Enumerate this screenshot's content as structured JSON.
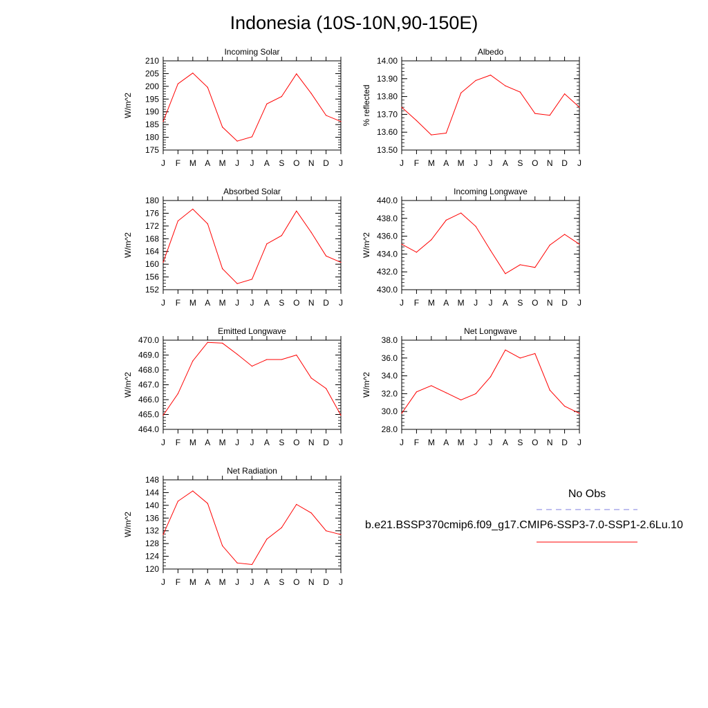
{
  "title": "Indonesia (10S-10N,90-150E)",
  "legend": {
    "title": "No Obs",
    "label": "b.e21.BSSP370cmip6.f09_g17.CMIP6-SSP3-7.0-SSP1-2.6Lu.10",
    "obs_color": "#7f7fe0",
    "model_color": "#ff0000"
  },
  "chart_data": [
    {
      "type": "line",
      "title": "Incoming Solar",
      "ylabel": "W/m^2",
      "categories": [
        "J",
        "F",
        "M",
        "A",
        "M",
        "J",
        "J",
        "A",
        "S",
        "O",
        "N",
        "D",
        "J"
      ],
      "ylim": [
        175,
        210
      ],
      "yticks": [
        "175",
        "180",
        "185",
        "190",
        "195",
        "200",
        "205",
        "210"
      ],
      "yminor": 1,
      "series": [
        {
          "color": "#ff0000",
          "values": [
            186.2,
            201.0,
            205.2,
            199.6,
            184.0,
            178.5,
            180.2,
            193.1,
            196.0,
            204.9,
            197.2,
            188.6,
            186.2
          ]
        }
      ]
    },
    {
      "type": "line",
      "title": "Albedo",
      "ylabel": "% reflected",
      "categories": [
        "J",
        "F",
        "M",
        "A",
        "M",
        "J",
        "J",
        "A",
        "S",
        "O",
        "N",
        "D",
        "J"
      ],
      "ylim": [
        13.5,
        14.0
      ],
      "yticks": [
        "13.50",
        "13.60",
        "13.70",
        "13.80",
        "13.90",
        "14.00"
      ],
      "yminor": 0.02,
      "series": [
        {
          "color": "#ff0000",
          "values": [
            13.74,
            13.665,
            13.585,
            13.595,
            13.82,
            13.89,
            13.92,
            13.86,
            13.825,
            13.705,
            13.695,
            13.815,
            13.74
          ]
        }
      ]
    },
    {
      "type": "line",
      "title": "Absorbed Solar",
      "ylabel": "W/m^2",
      "categories": [
        "J",
        "F",
        "M",
        "A",
        "M",
        "J",
        "J",
        "A",
        "S",
        "O",
        "N",
        "D",
        "J"
      ],
      "ylim": [
        152,
        180
      ],
      "yticks": [
        "152",
        "156",
        "160",
        "164",
        "168",
        "172",
        "176",
        "180"
      ],
      "yminor": 1,
      "series": [
        {
          "color": "#ff0000",
          "values": [
            160.6,
            173.6,
            177.3,
            172.7,
            158.6,
            153.9,
            155.3,
            166.4,
            169.0,
            176.7,
            170.0,
            162.6,
            160.6
          ]
        }
      ]
    },
    {
      "type": "line",
      "title": "Incoming Longwave",
      "ylabel": "W/m^2",
      "categories": [
        "J",
        "F",
        "M",
        "A",
        "M",
        "J",
        "J",
        "A",
        "S",
        "O",
        "N",
        "D",
        "J"
      ],
      "ylim": [
        430,
        440
      ],
      "yticks": [
        "430.0",
        "432.0",
        "434.0",
        "436.0",
        "438.0",
        "440.0"
      ],
      "yminor": 0.4,
      "series": [
        {
          "color": "#ff0000",
          "values": [
            435.1,
            434.2,
            435.6,
            437.8,
            438.6,
            437.1,
            434.4,
            431.8,
            432.8,
            432.5,
            435.0,
            436.2,
            435.1
          ]
        }
      ]
    },
    {
      "type": "line",
      "title": "Emitted Longwave",
      "ylabel": "W/m^2",
      "categories": [
        "J",
        "F",
        "M",
        "A",
        "M",
        "J",
        "J",
        "A",
        "S",
        "O",
        "N",
        "D",
        "J"
      ],
      "ylim": [
        464,
        470
      ],
      "yticks": [
        "464.0",
        "465.0",
        "466.0",
        "467.0",
        "468.0",
        "469.0",
        "470.0"
      ],
      "yminor": 0.2,
      "series": [
        {
          "color": "#ff0000",
          "values": [
            464.95,
            466.4,
            468.6,
            469.85,
            469.8,
            469.05,
            468.25,
            468.7,
            468.7,
            469.0,
            467.45,
            466.75,
            464.95
          ]
        }
      ]
    },
    {
      "type": "line",
      "title": "Net Longwave",
      "ylabel": "W/m^2",
      "categories": [
        "J",
        "F",
        "M",
        "A",
        "M",
        "J",
        "J",
        "A",
        "S",
        "O",
        "N",
        "D",
        "J"
      ],
      "ylim": [
        28,
        38
      ],
      "yticks": [
        "28.0",
        "30.0",
        "32.0",
        "34.0",
        "36.0",
        "38.0"
      ],
      "yminor": 0.4,
      "series": [
        {
          "color": "#ff0000",
          "values": [
            29.8,
            32.2,
            32.9,
            32.1,
            31.3,
            32.0,
            33.9,
            36.9,
            36.0,
            36.5,
            32.4,
            30.6,
            29.8
          ]
        }
      ]
    },
    {
      "type": "line",
      "title": "Net Radiation",
      "ylabel": "W/m^2",
      "categories": [
        "J",
        "F",
        "M",
        "A",
        "M",
        "J",
        "J",
        "A",
        "S",
        "O",
        "N",
        "D",
        "J"
      ],
      "ylim": [
        120,
        148
      ],
      "yticks": [
        "120",
        "124",
        "128",
        "132",
        "136",
        "140",
        "144",
        "148"
      ],
      "yminor": 1,
      "series": [
        {
          "color": "#ff0000",
          "values": [
            130.8,
            141.3,
            144.5,
            140.6,
            127.3,
            121.9,
            121.4,
            129.4,
            133.0,
            140.3,
            137.6,
            132.0,
            130.8
          ]
        }
      ]
    }
  ]
}
